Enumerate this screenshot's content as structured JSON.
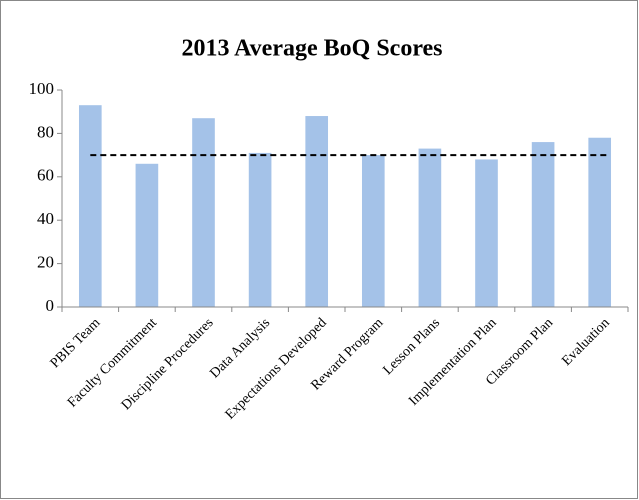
{
  "chart_data": {
    "type": "bar",
    "title": "2013 Average BoQ Scores",
    "categories": [
      "PBIS Team",
      "Faculty Commitment",
      "Discipline Procedures",
      "Data Analysis",
      "Expectations Developed",
      "Reward Program",
      "Lesson Plans",
      "Implementation Plan",
      "Classroom Plan",
      "Evaluation"
    ],
    "values": [
      93,
      66,
      87,
      71,
      88,
      70,
      73,
      68,
      76,
      78
    ],
    "color": "#a4c2e8",
    "reference_line": {
      "value": 70,
      "color": "#000000"
    },
    "ylim": [
      0,
      100
    ],
    "yticks": [
      0,
      20,
      40,
      60,
      80,
      100
    ],
    "grid": false
  }
}
